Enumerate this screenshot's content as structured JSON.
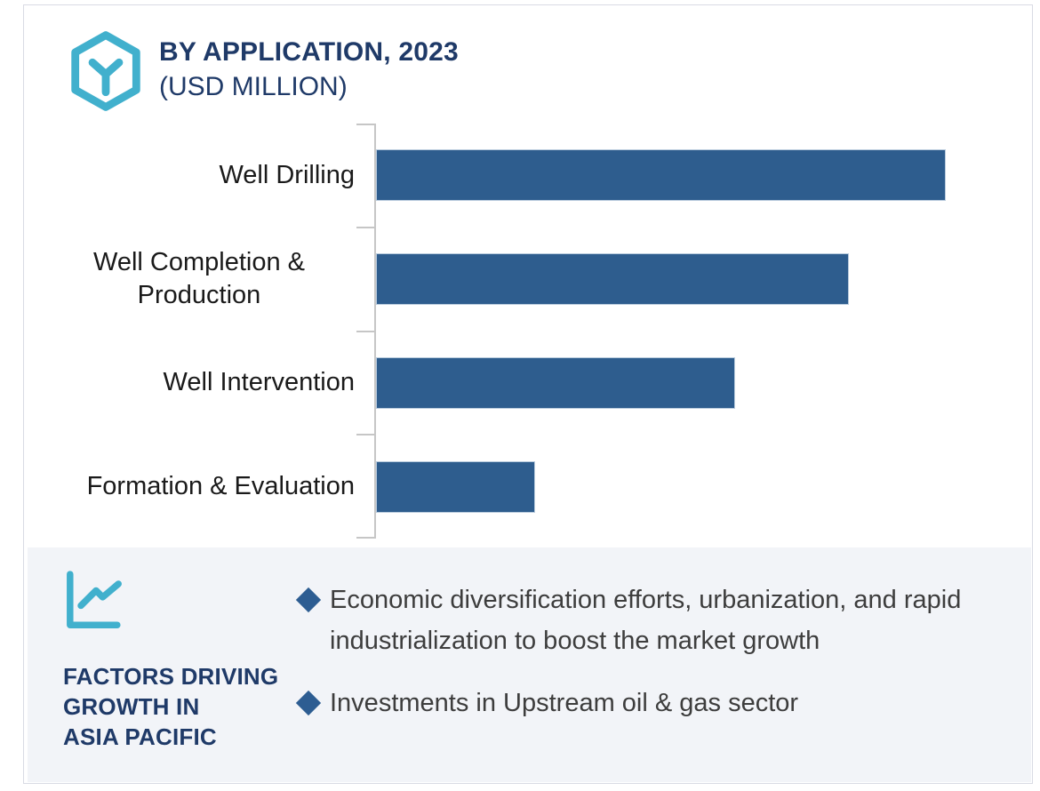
{
  "header": {
    "title_line1": "BY APPLICATION, 2023",
    "title_line2": "(USD MILLION)",
    "logo_icon": "hexagon-y-logo"
  },
  "chart_data": {
    "type": "bar",
    "orientation": "horizontal",
    "title": "BY APPLICATION, 2023 (USD MILLION)",
    "categories": [
      "Well Drilling",
      "Well Completion & Production",
      "Well Intervention",
      "Formation & Evaluation"
    ],
    "values_pct_of_max": [
      100,
      83,
      63,
      28
    ],
    "value_axis_labels_shown": false,
    "data_labels_shown": false,
    "grid": false,
    "legend": false,
    "bar_color": "#2e5d8e",
    "axis_color": "#c6c6c6"
  },
  "factors_panel": {
    "icon": "line-chart-icon",
    "heading_lines": [
      "FACTORS DRIVING",
      "GROWTH IN",
      "ASIA PACIFIC"
    ],
    "bullets": [
      "Economic diversification efforts, urbanization, and rapid industrialization to boost the market growth",
      "Investments in Upstream oil & gas sector"
    ]
  },
  "colors": {
    "accent_teal": "#41b0cd",
    "navy": "#1f3a68",
    "bar_blue": "#2e5d8e",
    "panel_bg": "#f2f4f8",
    "bullet_diamond": "#2d5d92",
    "body_text": "#3d3d3d",
    "card_border": "#d9dbe4"
  }
}
